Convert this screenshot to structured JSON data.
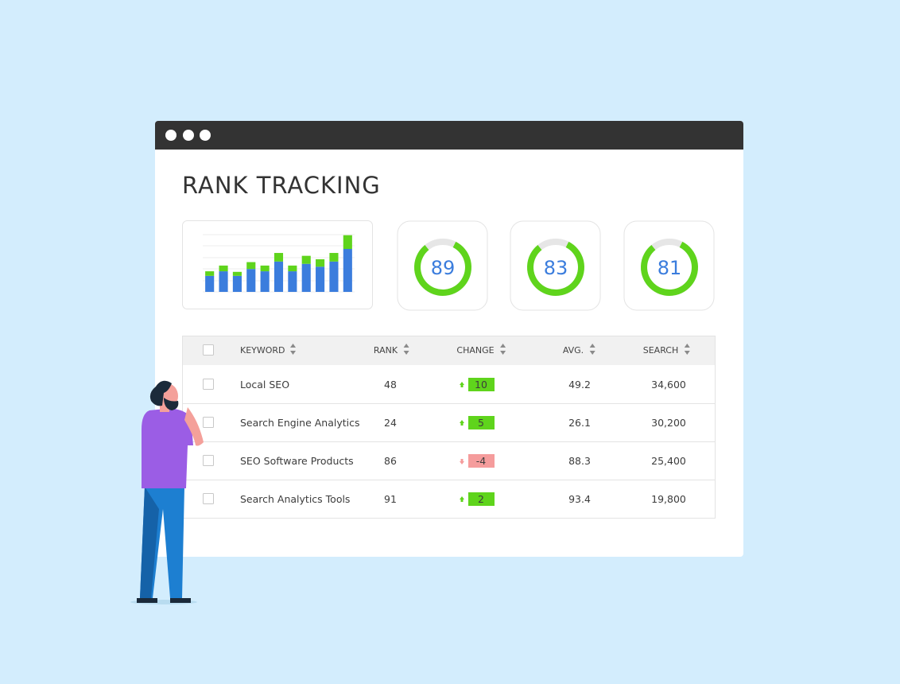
{
  "window": {
    "title": "RANK TRACKING"
  },
  "chart_data": {
    "type": "bar",
    "stacked": true,
    "series": [
      {
        "color": "#3b7ddd",
        "values": [
          28,
          36,
          28,
          40,
          36,
          53,
          36,
          49,
          44,
          53,
          75
        ]
      },
      {
        "color": "#5fd41c",
        "values": [
          8,
          10,
          7,
          12,
          10,
          15,
          10,
          14,
          13,
          15,
          24
        ]
      }
    ],
    "ylim": [
      0,
      100
    ]
  },
  "scores": [
    89,
    83,
    81
  ],
  "table": {
    "columns": [
      "KEYWORD",
      "RANK",
      "CHANGE",
      "AVG.",
      "SEARCH"
    ],
    "rows": [
      [
        "Local SEO",
        48,
        10,
        49.2,
        "34,600"
      ],
      [
        "Search Engine Analytics",
        24,
        5,
        26.1,
        "30,200"
      ],
      [
        "SEO Software Products",
        86,
        -4,
        88.3,
        "25,400"
      ],
      [
        "Search Analytics Tools",
        91,
        2,
        93.4,
        "19,800"
      ]
    ]
  }
}
